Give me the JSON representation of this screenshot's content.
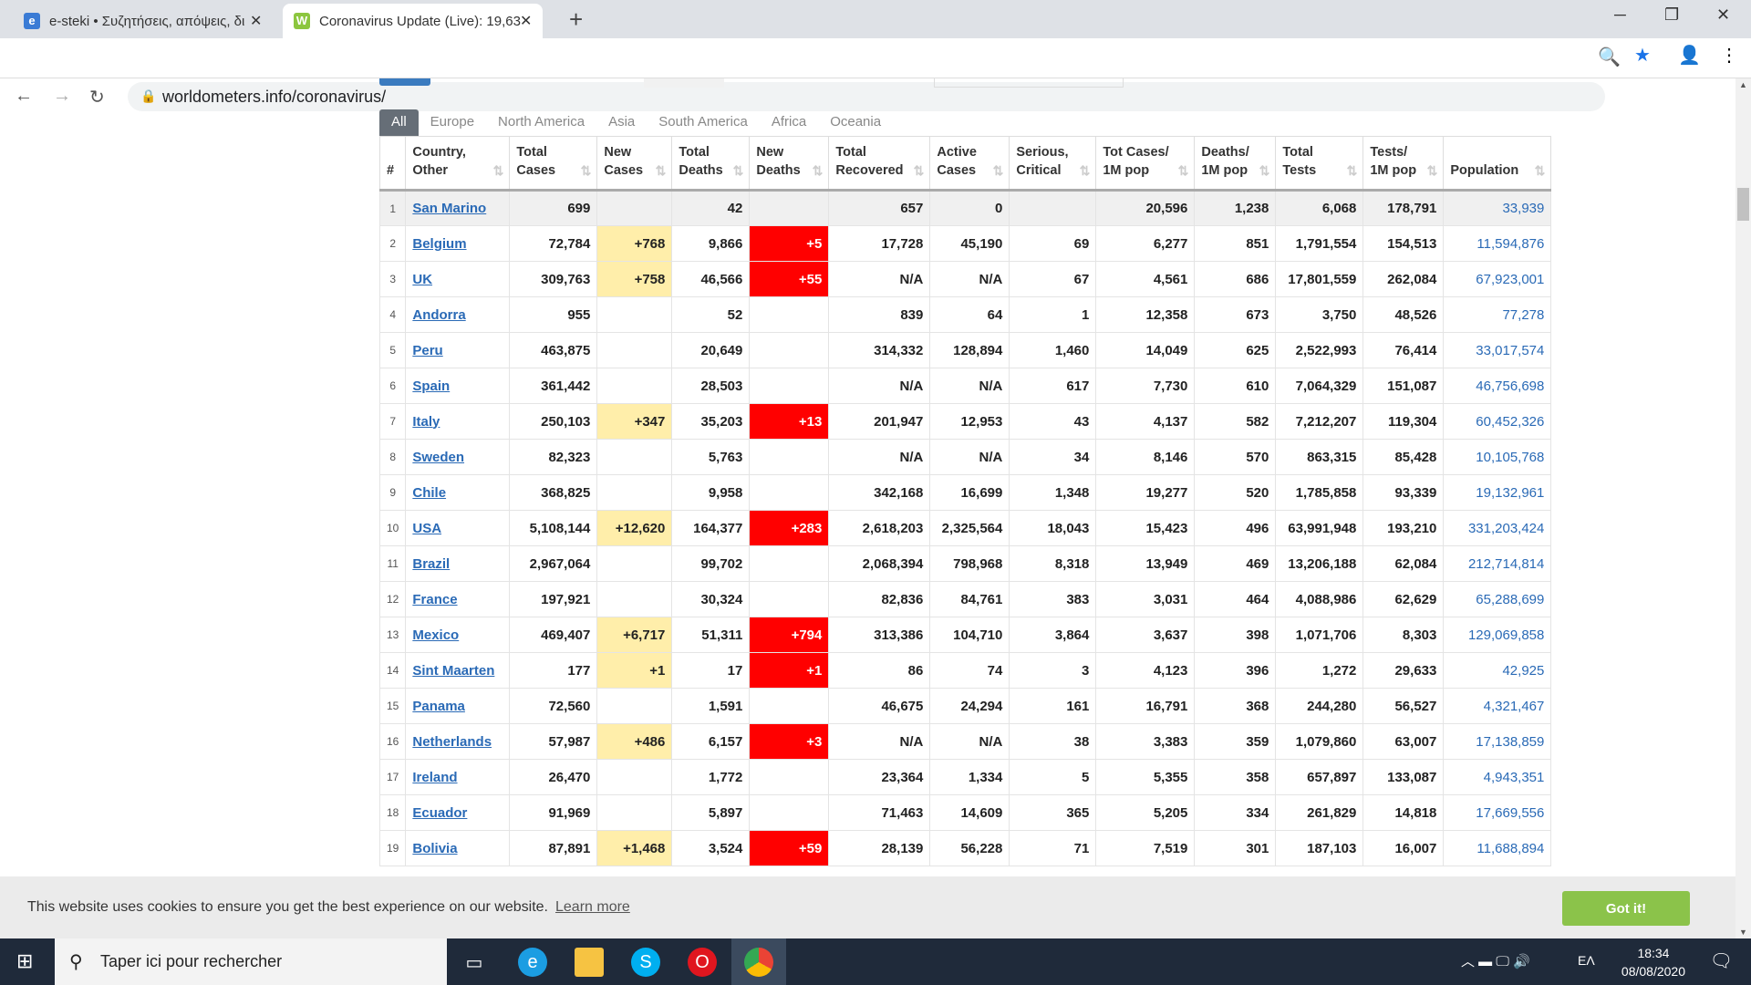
{
  "browser": {
    "tabs": [
      {
        "title": "e-steki • Συζητήσεις, απόψεις, δι",
        "favicon": "e-steki-icon"
      },
      {
        "title": "Coronavirus Update (Live): 19,63",
        "favicon": "worldometers-icon"
      }
    ],
    "url": "worldometers.info/coronavirus/"
  },
  "region_tabs": [
    "All",
    "Europe",
    "North America",
    "Asia",
    "South America",
    "Africa",
    "Oceania"
  ],
  "headers": [
    [
      "#",
      ""
    ],
    [
      "Country,",
      "Other"
    ],
    [
      "Total",
      "Cases"
    ],
    [
      "New",
      "Cases"
    ],
    [
      "Total",
      "Deaths"
    ],
    [
      "New",
      "Deaths"
    ],
    [
      "Total",
      "Recovered"
    ],
    [
      "Active",
      "Cases"
    ],
    [
      "Serious,",
      "Critical"
    ],
    [
      "Tot Cases/",
      "1M pop"
    ],
    [
      "Deaths/",
      "1M pop"
    ],
    [
      "Total",
      "Tests"
    ],
    [
      "Tests/",
      "1M pop"
    ],
    [
      "",
      "Population"
    ]
  ],
  "rows": [
    [
      "1",
      "San Marino",
      "699",
      "",
      "42",
      "",
      "657",
      "0",
      "",
      "20,596",
      "1,238",
      "6,068",
      "178,791",
      "33,939"
    ],
    [
      "2",
      "Belgium",
      "72,784",
      "+768",
      "9,866",
      "+5",
      "17,728",
      "45,190",
      "69",
      "6,277",
      "851",
      "1,791,554",
      "154,513",
      "11,594,876"
    ],
    [
      "3",
      "UK",
      "309,763",
      "+758",
      "46,566",
      "+55",
      "N/A",
      "N/A",
      "67",
      "4,561",
      "686",
      "17,801,559",
      "262,084",
      "67,923,001"
    ],
    [
      "4",
      "Andorra",
      "955",
      "",
      "52",
      "",
      "839",
      "64",
      "1",
      "12,358",
      "673",
      "3,750",
      "48,526",
      "77,278"
    ],
    [
      "5",
      "Peru",
      "463,875",
      "",
      "20,649",
      "",
      "314,332",
      "128,894",
      "1,460",
      "14,049",
      "625",
      "2,522,993",
      "76,414",
      "33,017,574"
    ],
    [
      "6",
      "Spain",
      "361,442",
      "",
      "28,503",
      "",
      "N/A",
      "N/A",
      "617",
      "7,730",
      "610",
      "7,064,329",
      "151,087",
      "46,756,698"
    ],
    [
      "7",
      "Italy",
      "250,103",
      "+347",
      "35,203",
      "+13",
      "201,947",
      "12,953",
      "43",
      "4,137",
      "582",
      "7,212,207",
      "119,304",
      "60,452,326"
    ],
    [
      "8",
      "Sweden",
      "82,323",
      "",
      "5,763",
      "",
      "N/A",
      "N/A",
      "34",
      "8,146",
      "570",
      "863,315",
      "85,428",
      "10,105,768"
    ],
    [
      "9",
      "Chile",
      "368,825",
      "",
      "9,958",
      "",
      "342,168",
      "16,699",
      "1,348",
      "19,277",
      "520",
      "1,785,858",
      "93,339",
      "19,132,961"
    ],
    [
      "10",
      "USA",
      "5,108,144",
      "+12,620",
      "164,377",
      "+283",
      "2,618,203",
      "2,325,564",
      "18,043",
      "15,423",
      "496",
      "63,991,948",
      "193,210",
      "331,203,424"
    ],
    [
      "11",
      "Brazil",
      "2,967,064",
      "",
      "99,702",
      "",
      "2,068,394",
      "798,968",
      "8,318",
      "13,949",
      "469",
      "13,206,188",
      "62,084",
      "212,714,814"
    ],
    [
      "12",
      "France",
      "197,921",
      "",
      "30,324",
      "",
      "82,836",
      "84,761",
      "383",
      "3,031",
      "464",
      "4,088,986",
      "62,629",
      "65,288,699"
    ],
    [
      "13",
      "Mexico",
      "469,407",
      "+6,717",
      "51,311",
      "+794",
      "313,386",
      "104,710",
      "3,864",
      "3,637",
      "398",
      "1,071,706",
      "8,303",
      "129,069,858"
    ],
    [
      "14",
      "Sint Maarten",
      "177",
      "+1",
      "17",
      "+1",
      "86",
      "74",
      "3",
      "4,123",
      "396",
      "1,272",
      "29,633",
      "42,925"
    ],
    [
      "15",
      "Panama",
      "72,560",
      "",
      "1,591",
      "",
      "46,675",
      "24,294",
      "161",
      "16,791",
      "368",
      "244,280",
      "56,527",
      "4,321,467"
    ],
    [
      "16",
      "Netherlands",
      "57,987",
      "+486",
      "6,157",
      "+3",
      "N/A",
      "N/A",
      "38",
      "3,383",
      "359",
      "1,079,860",
      "63,007",
      "17,138,859"
    ],
    [
      "17",
      "Ireland",
      "26,470",
      "",
      "1,772",
      "",
      "23,364",
      "1,334",
      "5",
      "5,355",
      "358",
      "657,897",
      "133,087",
      "4,943,351"
    ],
    [
      "18",
      "Ecuador",
      "91,969",
      "",
      "5,897",
      "",
      "71,463",
      "14,609",
      "365",
      "5,205",
      "334",
      "261,829",
      "14,818",
      "17,669,556"
    ],
    [
      "19",
      "Bolivia",
      "87,891",
      "+1,468",
      "3,524",
      "+59",
      "28,139",
      "56,228",
      "71",
      "7,519",
      "301",
      "187,103",
      "16,007",
      "11,688,894"
    ]
  ],
  "colors": {
    "new_cases_bg": "#ffeeaa",
    "new_deaths_bg": "#ff0000",
    "link": "#2a6ab6",
    "accept": "#8bc34a"
  },
  "cookie": {
    "text": "This website uses cookies to ensure you get the best experience on our website.",
    "learn_more": "Learn more",
    "accept": "Got it!"
  },
  "taskbar": {
    "search_placeholder": "Taper ici pour rechercher",
    "lang": "EΛ",
    "time": "18:34",
    "date": "08/08/2020"
  }
}
